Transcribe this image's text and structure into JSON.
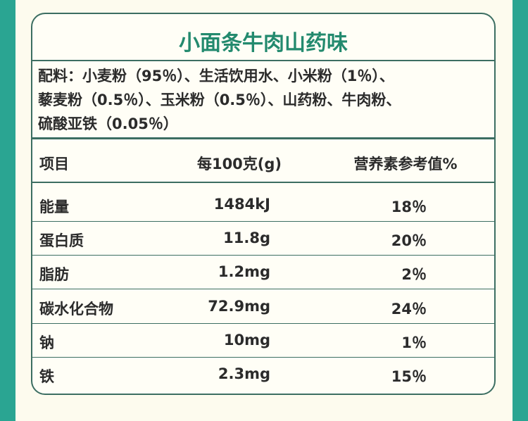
{
  "title": "小面条牛肉山药味",
  "ingredients": [
    "配料：小麦粉（95％）、生活饮用水、小米粉（1％）、",
    "藜麦粉（0.5％）、玉米粉（0.5％）、山药粉、牛肉粉、",
    "硫酸亚铁（0.05％）"
  ],
  "table": {
    "header": [
      "项目",
      "每100克(g)",
      "营养素参考值%"
    ],
    "rows": [
      [
        "能量",
        "1484kJ",
        "18％"
      ],
      [
        "蛋白质",
        "11.8g",
        "20％"
      ],
      [
        "脂肪",
        "1.2mg",
        "2％"
      ],
      [
        "碳水化合物",
        "72.9mg",
        "24％"
      ],
      [
        "钠",
        "10mg",
        "1％"
      ],
      [
        "铁",
        "2.3mg",
        "15％"
      ]
    ]
  }
}
